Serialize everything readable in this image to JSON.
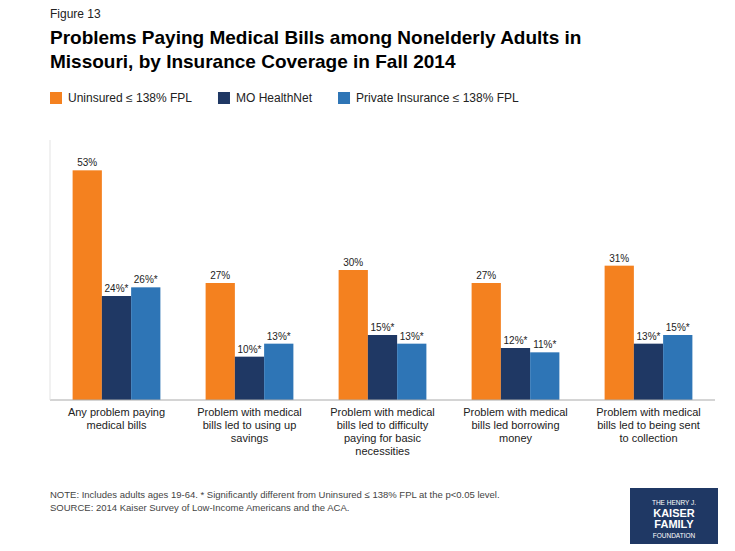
{
  "chart_data": {
    "type": "bar",
    "title": "Problems Paying Medical Bills among Nonelderly Adults in\nMissouri, by Insurance Coverage in Fall 2014",
    "subtitle": "Figure 13",
    "annotations": [
      "NOTE: Includes adults ages 19-64. * Significantly different from Uninsured ≤ 138% FPL at the p<0.05 level.\nSOURCE: 2014 Kaiser Survey of Low-Income Americans and the ACA.",
      "THE HENRY J.",
      "KAISER",
      "FAMILY",
      "FOUNDATION"
    ],
    "categories": [
      "Any problem paying\nmedical bills",
      "Problem with medical\nbills led to using up\nsavings",
      "Problem with medical\nbills led to difficulty\npaying for basic\nnecessities",
      "Problem with medical\nbills led borrowing\nmoney",
      "Problem with medical\nbills led to being sent\nto collection"
    ],
    "series": [
      {
        "name": "Uninsured ≤ 138% FPL",
        "color": "#F4811F",
        "values": [
          53,
          27,
          30,
          27,
          31
        ],
        "value_labels": [
          "53%",
          "27%",
          "30%",
          "27%",
          "31%"
        ]
      },
      {
        "name": "MO HealthNet",
        "color": "#1F3864",
        "values": [
          24,
          10,
          15,
          12,
          13
        ],
        "value_labels": [
          "24%*",
          "10%*",
          "15%*",
          "12%*",
          "13%*"
        ]
      },
      {
        "name": "Private Insurance ≤ 138% FPL",
        "color": "#2E75B6",
        "values": [
          26,
          13,
          13,
          11,
          15
        ],
        "value_labels": [
          "26%*",
          "13%*",
          "13%*",
          "11%*",
          "15%*"
        ]
      }
    ],
    "ylim": [
      0,
      60
    ],
    "tick_labels": "x",
    "data_labels": true,
    "grid": false,
    "legend": "top"
  }
}
